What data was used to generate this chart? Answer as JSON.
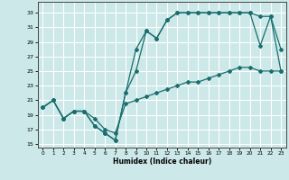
{
  "xlabel": "Humidex (Indice chaleur)",
  "bg_color": "#cce8e8",
  "grid_color": "#ffffff",
  "line_color": "#1a6e6e",
  "xlim": [
    -0.5,
    23.5
  ],
  "ylim": [
    14.5,
    34.5
  ],
  "yticks": [
    15,
    17,
    19,
    21,
    23,
    25,
    27,
    29,
    31,
    33
  ],
  "xticks": [
    0,
    1,
    2,
    3,
    4,
    5,
    6,
    7,
    8,
    9,
    10,
    11,
    12,
    13,
    14,
    15,
    16,
    17,
    18,
    19,
    20,
    21,
    22,
    23
  ],
  "line1_x": [
    0,
    1,
    2,
    3,
    4,
    5,
    6,
    7,
    8,
    9,
    10,
    11,
    12,
    13,
    14,
    15,
    16,
    17,
    18,
    19,
    20,
    21,
    22,
    23
  ],
  "line1_y": [
    20.0,
    21.0,
    18.5,
    19.5,
    19.5,
    17.5,
    16.5,
    15.5,
    22.0,
    28.0,
    30.5,
    29.5,
    32.0,
    33.0,
    33.0,
    33.0,
    33.0,
    33.0,
    33.0,
    33.0,
    33.0,
    28.5,
    32.5,
    28.0
  ],
  "line2_x": [
    0,
    1,
    2,
    3,
    4,
    5,
    6,
    7,
    8,
    9,
    10,
    11,
    12,
    13,
    14,
    15,
    16,
    17,
    18,
    19,
    20,
    21,
    22,
    23
  ],
  "line2_y": [
    20.0,
    21.0,
    18.5,
    19.5,
    19.5,
    17.5,
    16.5,
    15.5,
    22.0,
    25.0,
    30.5,
    29.5,
    32.0,
    33.0,
    33.0,
    33.0,
    33.0,
    33.0,
    33.0,
    33.0,
    33.0,
    32.5,
    32.5,
    25.0
  ],
  "line3_x": [
    0,
    1,
    2,
    3,
    4,
    5,
    6,
    7,
    8,
    9,
    10,
    11,
    12,
    13,
    14,
    15,
    16,
    17,
    18,
    19,
    20,
    21,
    22,
    23
  ],
  "line3_y": [
    20.0,
    21.0,
    18.5,
    19.5,
    19.5,
    18.5,
    17.0,
    16.5,
    20.5,
    21.0,
    21.5,
    22.0,
    22.5,
    23.0,
    23.5,
    23.5,
    24.0,
    24.5,
    25.0,
    25.5,
    25.5,
    25.0,
    25.0,
    25.0
  ]
}
